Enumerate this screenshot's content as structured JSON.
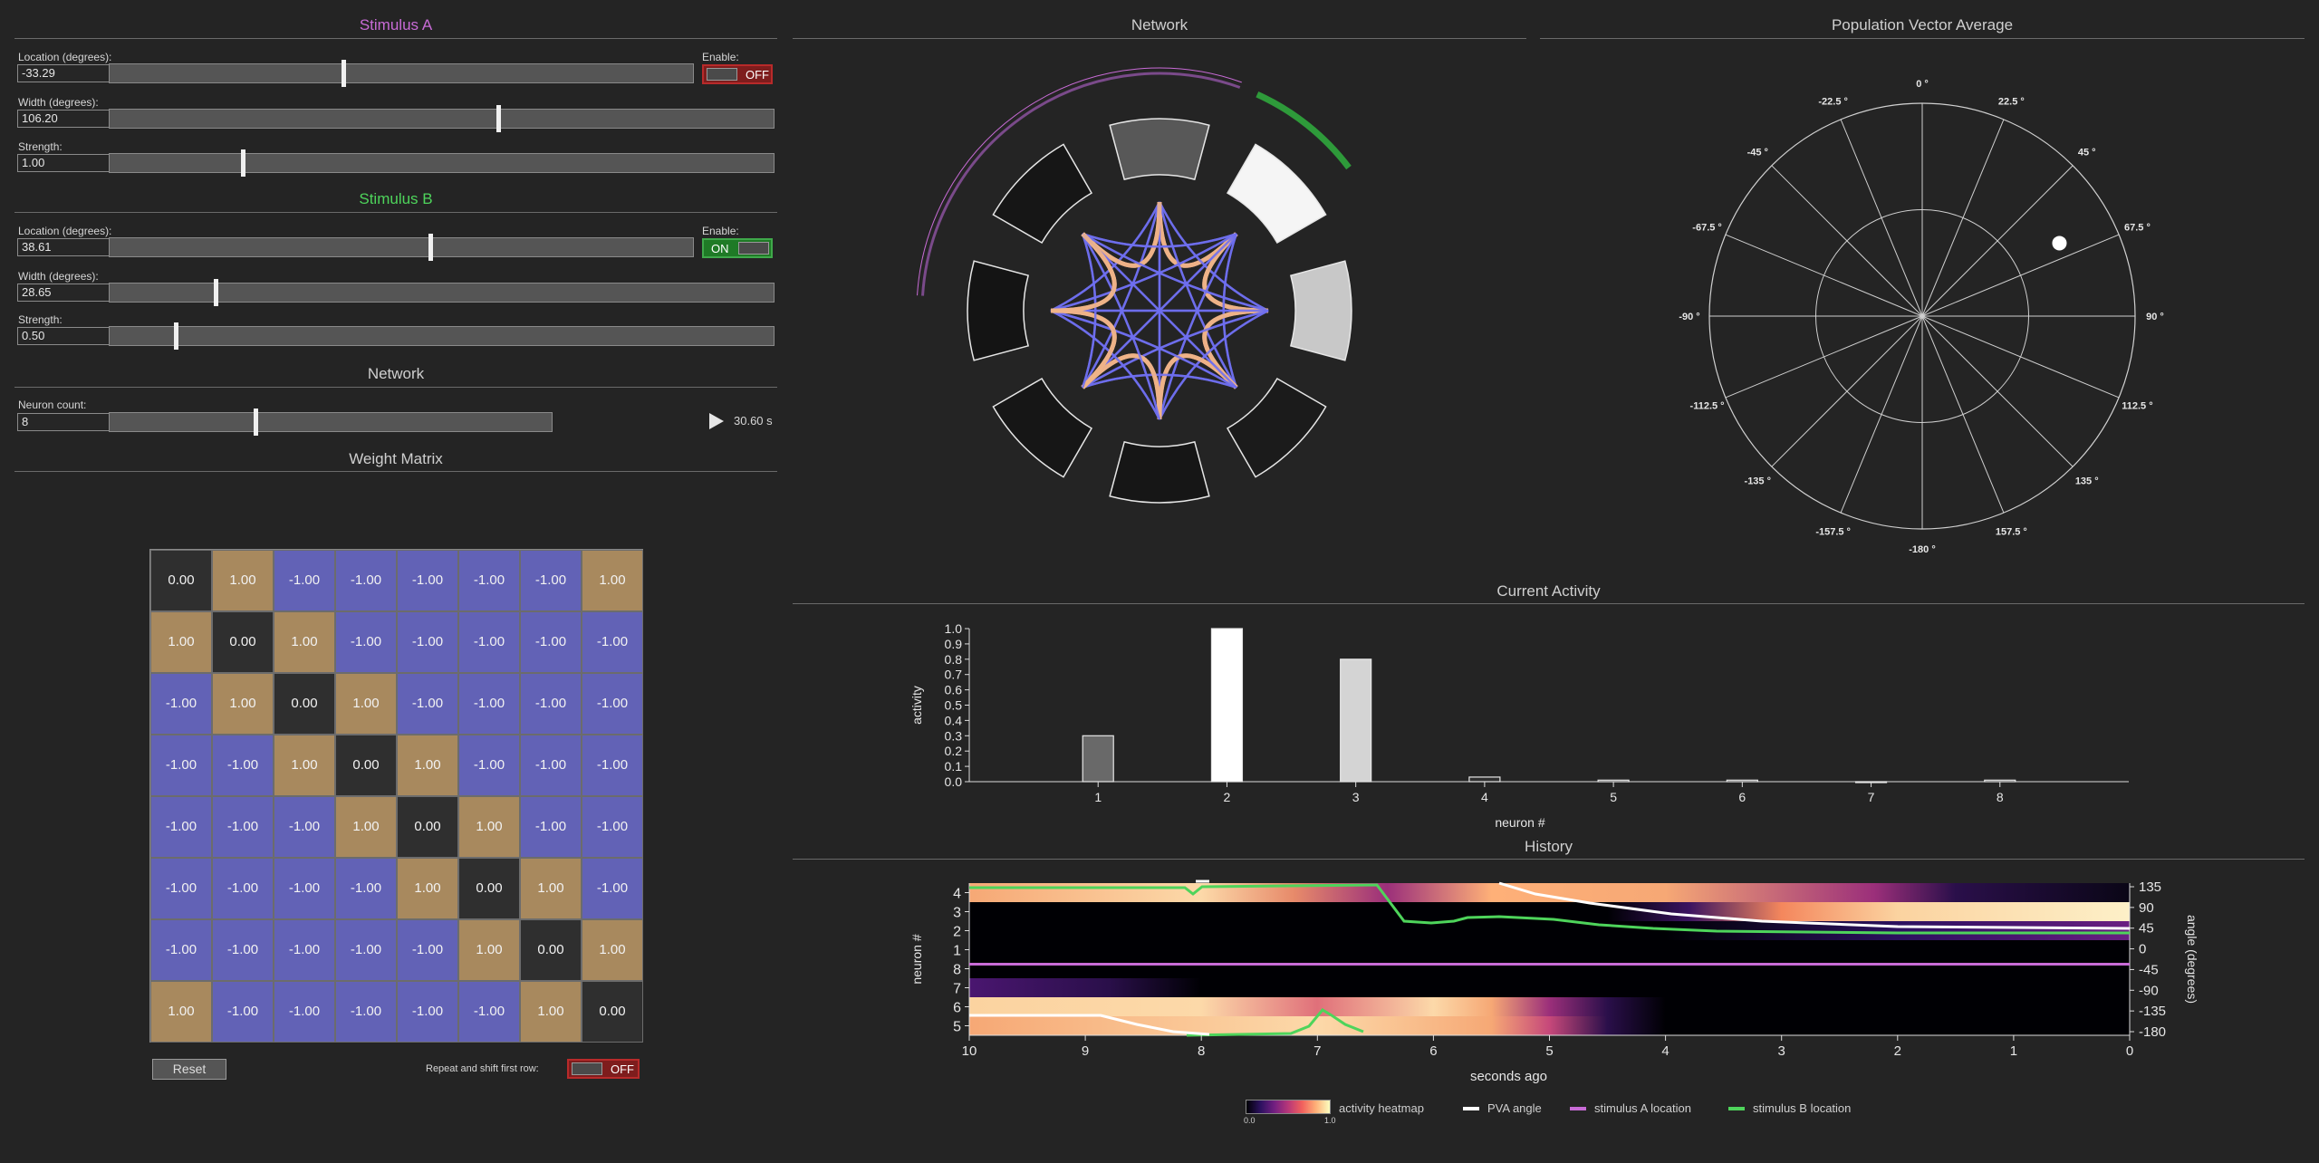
{
  "stimulus_a": {
    "title": "Stimulus A",
    "location_label": "Location (degrees):",
    "location_value": "-33.29",
    "location_fraction": 0.4,
    "width_label": "Width (degrees):",
    "width_value": "106.20",
    "width_fraction": 0.585,
    "strength_label": "Strength:",
    "strength_value": "1.00",
    "strength_fraction": 0.2,
    "enable_label": "Enable:",
    "enable_state": "OFF",
    "color": "#c86bd6"
  },
  "stimulus_b": {
    "title": "Stimulus B",
    "location_label": "Location (degrees):",
    "location_value": "38.61",
    "location_fraction": 0.55,
    "width_label": "Width (degrees):",
    "width_value": "28.65",
    "width_fraction": 0.16,
    "strength_label": "Strength:",
    "strength_value": "0.50",
    "strength_fraction": 0.1,
    "enable_label": "Enable:",
    "enable_state": "ON",
    "color": "#4ed45b"
  },
  "network_controls": {
    "title": "Network",
    "neuron_count_label": "Neuron count:",
    "neuron_count_value": "8",
    "neuron_count_fraction": 0.33,
    "play_icon": "play-icon",
    "time": "30.60 s"
  },
  "weight_matrix": {
    "title": "Weight Matrix",
    "rows": [
      [
        "0.00",
        "1.00",
        "-1.00",
        "-1.00",
        "-1.00",
        "-1.00",
        "-1.00",
        "1.00"
      ],
      [
        "1.00",
        "0.00",
        "1.00",
        "-1.00",
        "-1.00",
        "-1.00",
        "-1.00",
        "-1.00"
      ],
      [
        "-1.00",
        "1.00",
        "0.00",
        "1.00",
        "-1.00",
        "-1.00",
        "-1.00",
        "-1.00"
      ],
      [
        "-1.00",
        "-1.00",
        "1.00",
        "0.00",
        "1.00",
        "-1.00",
        "-1.00",
        "-1.00"
      ],
      [
        "-1.00",
        "-1.00",
        "-1.00",
        "1.00",
        "0.00",
        "1.00",
        "-1.00",
        "-1.00"
      ],
      [
        "-1.00",
        "-1.00",
        "-1.00",
        "-1.00",
        "1.00",
        "0.00",
        "1.00",
        "-1.00"
      ],
      [
        "-1.00",
        "-1.00",
        "-1.00",
        "-1.00",
        "-1.00",
        "1.00",
        "0.00",
        "1.00"
      ],
      [
        "1.00",
        "-1.00",
        "-1.00",
        "-1.00",
        "-1.00",
        "-1.00",
        "1.00",
        "0.00"
      ]
    ],
    "colors": {
      "positive": "#a8895e",
      "negative": "#6262b6",
      "zero": "#2f2f2f"
    },
    "reset_label": "Reset",
    "repeat_label": "Repeat and shift first row:",
    "repeat_state": "OFF"
  },
  "network_view": {
    "title": "Network",
    "neuron_activity": [
      0.3,
      1.0,
      0.8,
      0.03,
      0.01,
      0.01,
      0.0,
      0.01
    ]
  },
  "pva": {
    "title": "Population Vector Average",
    "angle_labels": [
      "0 °",
      "22.5 °",
      "45 °",
      "67.5 °",
      "90 °",
      "112.5 °",
      "135 °",
      "157.5 °",
      "-180 °",
      "-157.5 °",
      "-135 °",
      "-112.5 °",
      "-90 °",
      "-67.5 °",
      "-45 °",
      "-22.5 °"
    ],
    "point_angle_deg": 62,
    "point_radius_fraction": 0.73
  },
  "activity": {
    "title": "Current Activity",
    "chart_data": {
      "type": "bar",
      "categories": [
        "1",
        "2",
        "3",
        "4",
        "5",
        "6",
        "7",
        "8"
      ],
      "values": [
        0.3,
        1.0,
        0.8,
        0.03,
        0.01,
        0.01,
        0.0,
        0.01
      ],
      "xlabel": "neuron #",
      "ylabel": "activity",
      "ylim": [
        0,
        1.0
      ],
      "yticks": [
        "0.0",
        "0.1",
        "0.2",
        "0.3",
        "0.4",
        "0.5",
        "0.6",
        "0.7",
        "0.8",
        "0.9",
        "1.0"
      ]
    }
  },
  "history": {
    "title": "History",
    "chart_data": {
      "type": "heatmap",
      "x_ticks": [
        "10",
        "9",
        "8",
        "7",
        "6",
        "5",
        "4",
        "3",
        "2",
        "1",
        "0"
      ],
      "y_ticks": [
        "4",
        "3",
        "2",
        "1",
        "8",
        "7",
        "6",
        "5"
      ],
      "right_ticks": [
        "135",
        "90",
        "45",
        "0",
        "-45",
        "-90",
        "-135",
        "-180"
      ],
      "xlabel": "seconds ago",
      "ylabel": "neuron #",
      "right_label": "angle (degrees)",
      "stimulus_a_angle": -33.29
    },
    "legend": {
      "heatmap": "activity heatmap",
      "heatmap_min": "0.0",
      "heatmap_max": "1.0",
      "pva": "PVA angle",
      "stim_a": "stimulus A location",
      "stim_b": "stimulus B location"
    }
  }
}
